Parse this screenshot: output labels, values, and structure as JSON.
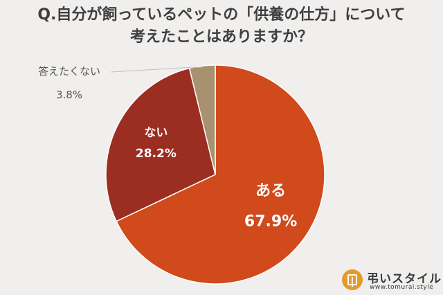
{
  "title": {
    "line1": "Q.自分が飼っているペットの「供養の仕方」について",
    "line2": "考えたことはありますか？"
  },
  "chart_data": {
    "type": "pie",
    "title": "Q.自分が飼っているペットの「供養の仕方」について 考えたことはありますか？",
    "slices": [
      {
        "label": "ある",
        "value": 67.9,
        "value_label": "67.9%",
        "color": "#d04a1b"
      },
      {
        "label": "ない",
        "value": 28.2,
        "value_label": "28.2%",
        "color": "#9c2d21"
      },
      {
        "label": "答えたくない",
        "value": 3.8,
        "value_label": "3.8%",
        "color": "#a8916e"
      }
    ],
    "legend": "none",
    "label_color": "#ffffff",
    "outside_label_color": "#555555"
  },
  "logo": {
    "name": "弔いスタイル",
    "url": "www.tomurai.style",
    "color": "#e79a2c"
  }
}
